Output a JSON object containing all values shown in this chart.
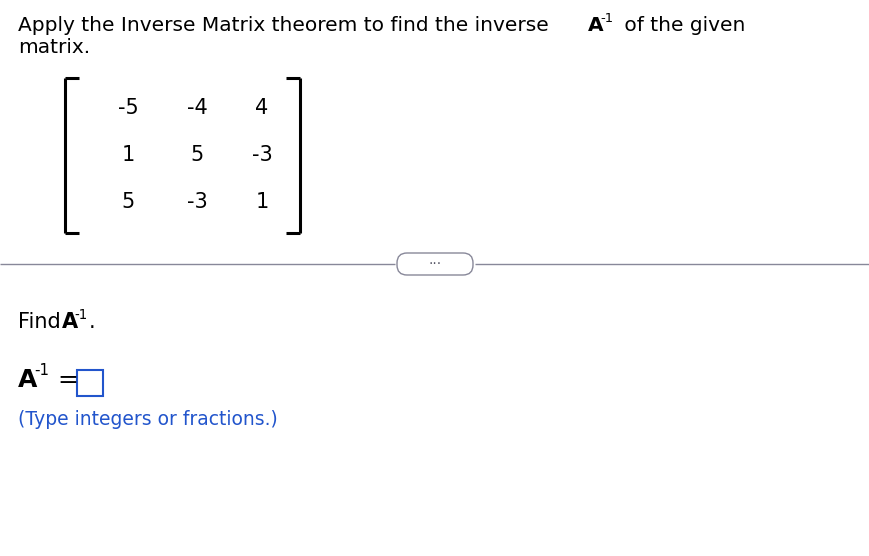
{
  "matrix": [
    [
      "-5",
      "-4",
      "4"
    ],
    [
      "1",
      "5",
      "-3"
    ],
    [
      "5",
      "-3",
      "1"
    ]
  ],
  "hint_text": "(Type integers or fractions.)",
  "bg_color": "#ffffff",
  "text_color": "#000000",
  "blue_color": "#2255cc",
  "divider_color": "#888899",
  "box_color": "#2255cc",
  "dots_color": "#555566",
  "title_normal": "Apply the Inverse Matrix theorem to find the inverse ",
  "title_bold_A": "A",
  "title_sup": "-1",
  "title_end": " of the given",
  "title_line2": "matrix.",
  "find_normal": "Find ",
  "find_bold_A": "A",
  "find_sup": "-1",
  "find_end": ".",
  "ans_bold_A": "A",
  "ans_sup": "-1",
  "ans_eq": " ="
}
